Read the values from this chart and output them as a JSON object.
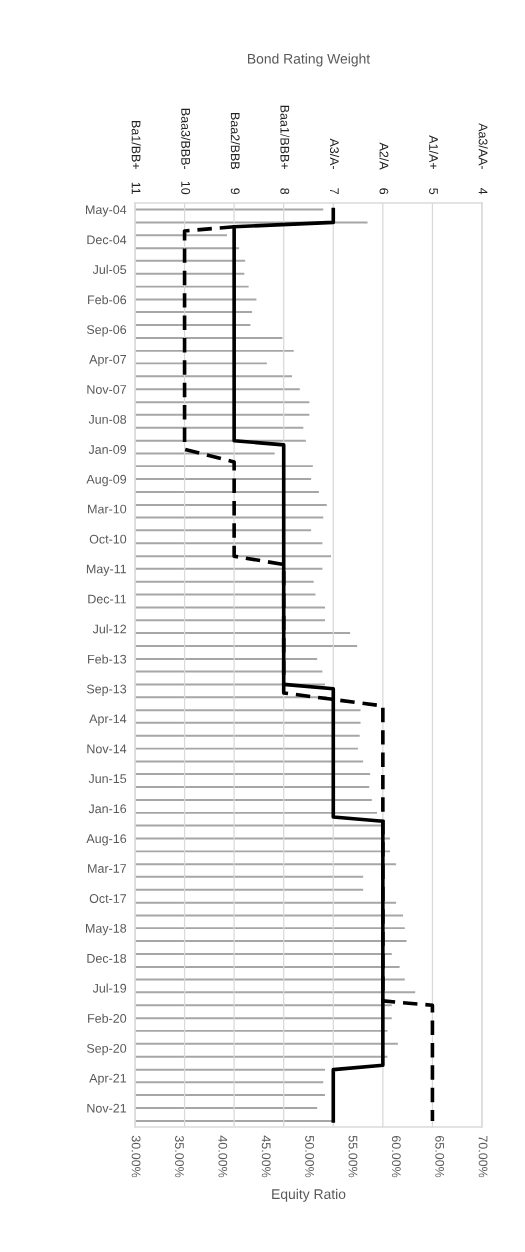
{
  "chart_data": {
    "type": "bar",
    "orientation": "horizontal",
    "x": [
      "2004-05",
      "2004-08",
      "2004-11",
      "2005-02",
      "2005-05",
      "2005-08",
      "2005-11",
      "2006-02",
      "2006-05",
      "2006-08",
      "2006-11",
      "2007-02",
      "2007-05",
      "2007-08",
      "2007-11",
      "2008-02",
      "2008-05",
      "2008-08",
      "2008-11",
      "2009-02",
      "2009-05",
      "2009-08",
      "2009-11",
      "2010-02",
      "2010-05",
      "2010-08",
      "2010-11",
      "2011-02",
      "2011-05",
      "2011-08",
      "2011-11",
      "2012-02",
      "2012-05",
      "2012-08",
      "2012-11",
      "2013-02",
      "2013-05",
      "2013-08",
      "2013-11",
      "2014-02",
      "2014-05",
      "2014-08",
      "2014-11",
      "2015-02",
      "2015-05",
      "2015-08",
      "2015-11",
      "2016-02",
      "2016-05",
      "2016-08",
      "2016-11",
      "2017-02",
      "2017-05",
      "2017-08",
      "2017-11",
      "2018-02",
      "2018-05",
      "2018-08",
      "2018-11",
      "2019-02",
      "2019-05",
      "2019-08",
      "2019-11",
      "2020-02",
      "2020-05",
      "2020-08",
      "2020-11",
      "2021-02",
      "2021-05",
      "2021-08",
      "2021-11",
      "2022-02"
    ],
    "series": [
      {
        "color": "#a6a6a6",
        "values": [
          51.7,
          56.8,
          40.6,
          42.0,
          42.7,
          42.6,
          43.1,
          44.0,
          43.5,
          43.3,
          47.0,
          48.3,
          45.2,
          48.1,
          49.0,
          50.1,
          50.1,
          49.4,
          49.7,
          46.1,
          50.5,
          50.3,
          51.2,
          52.1,
          51.7,
          50.3,
          51.6,
          52.6,
          51.6,
          50.6,
          50.8,
          51.9,
          51.9,
          54.8,
          55.6,
          51.0,
          51.6,
          51.9,
          52.1,
          56.0,
          56.0,
          55.9,
          55.7,
          56.3,
          57.1,
          57.0,
          57.3,
          57.9,
          58.7,
          59.4,
          59.4,
          60.1,
          56.3,
          56.3,
          60.1,
          60.9,
          61.1,
          61.3,
          59.6,
          60.5,
          61.1,
          62.3,
          59.6,
          59.6,
          59.1,
          60.3,
          59.1,
          51.9,
          51.7,
          51.9,
          51.0,
          52.7
        ]
      },
      {
        "type": "line",
        "axis": "x2",
        "color": "#000000",
        "line_style": "dashed",
        "x": [
          "2004-09",
          "2004-10",
          "2009-01",
          "2009-04",
          "2011-02",
          "2011-04",
          "2013-10",
          "2014-01",
          "2019-10",
          "2019-11",
          "2022-02"
        ],
        "values": [
          9,
          10,
          10,
          9,
          9,
          8,
          8,
          6,
          6,
          5,
          5
        ]
      },
      {
        "type": "line",
        "axis": "x2",
        "color": "#000000",
        "line_style": "solid",
        "x": [
          "2004-05",
          "2004-08",
          "2004-09",
          "2008-11",
          "2008-12",
          "2013-08",
          "2013-09",
          "2016-03",
          "2016-04",
          "2021-01",
          "2021-02",
          "2022-02"
        ],
        "values": [
          7,
          7,
          9,
          9,
          8,
          8,
          7,
          7,
          6,
          6,
          7,
          7
        ]
      }
    ],
    "xlabel": "Equity Ratio",
    "x2label": "Bond Rating Weight",
    "xlim": [
      30,
      70
    ],
    "xticks": [
      {
        "value": 30,
        "label": "30.00%"
      },
      {
        "value": 35,
        "label": "35.00%"
      },
      {
        "value": 40,
        "label": "40.00%"
      },
      {
        "value": 45,
        "label": "45.00%"
      },
      {
        "value": 50,
        "label": "50.00%"
      },
      {
        "value": 55,
        "label": "55.00%"
      },
      {
        "value": 60,
        "label": "60.00%"
      },
      {
        "value": 65,
        "label": "65.00%"
      },
      {
        "value": 70,
        "label": "70.00%"
      }
    ],
    "x2lim": [
      11,
      4
    ],
    "x2ticks": [
      11,
      10,
      9,
      8,
      7,
      6,
      5,
      4
    ],
    "annotations": [
      "Ba1/BB+",
      "Baa3/BBB-",
      "Baa2/BBB",
      "Baa1/BBB+",
      "A3/A-",
      "A2/A",
      "A1/A+",
      "Aa3/AA-"
    ],
    "ylim": [
      "2022-03-16",
      "2004-03-16"
    ],
    "yticks": [
      {
        "value": "2004-05",
        "label": "May-04"
      },
      {
        "value": "2004-12",
        "label": "Dec-04"
      },
      {
        "value": "2005-07",
        "label": "Jul-05"
      },
      {
        "value": "2006-02",
        "label": "Feb-06"
      },
      {
        "value": "2006-09",
        "label": "Sep-06"
      },
      {
        "value": "2007-04",
        "label": "Apr-07"
      },
      {
        "value": "2007-11",
        "label": "Nov-07"
      },
      {
        "value": "2008-06",
        "label": "Jun-08"
      },
      {
        "value": "2009-01",
        "label": "Jan-09"
      },
      {
        "value": "2009-08",
        "label": "Aug-09"
      },
      {
        "value": "2010-03",
        "label": "Mar-10"
      },
      {
        "value": "2010-10",
        "label": "Oct-10"
      },
      {
        "value": "2011-05",
        "label": "May-11"
      },
      {
        "value": "2011-12",
        "label": "Dec-11"
      },
      {
        "value": "2012-07",
        "label": "Jul-12"
      },
      {
        "value": "2013-02",
        "label": "Feb-13"
      },
      {
        "value": "2013-09",
        "label": "Sep-13"
      },
      {
        "value": "2014-04",
        "label": "Apr-14"
      },
      {
        "value": "2014-11",
        "label": "Nov-14"
      },
      {
        "value": "2015-06",
        "label": "Jun-15"
      },
      {
        "value": "2016-01",
        "label": "Jan-16"
      },
      {
        "value": "2016-08",
        "label": "Aug-16"
      },
      {
        "value": "2017-03",
        "label": "Mar-17"
      },
      {
        "value": "2017-10",
        "label": "Oct-17"
      },
      {
        "value": "2018-05",
        "label": "May-18"
      },
      {
        "value": "2018-12",
        "label": "Dec-18"
      },
      {
        "value": "2019-07",
        "label": "Jul-19"
      },
      {
        "value": "2020-02",
        "label": "Feb-20"
      },
      {
        "value": "2020-09",
        "label": "Sep-20"
      },
      {
        "value": "2021-04",
        "label": "Apr-21"
      },
      {
        "value": "2021-11",
        "label": "Nov-21"
      }
    ],
    "grid": "x"
  }
}
